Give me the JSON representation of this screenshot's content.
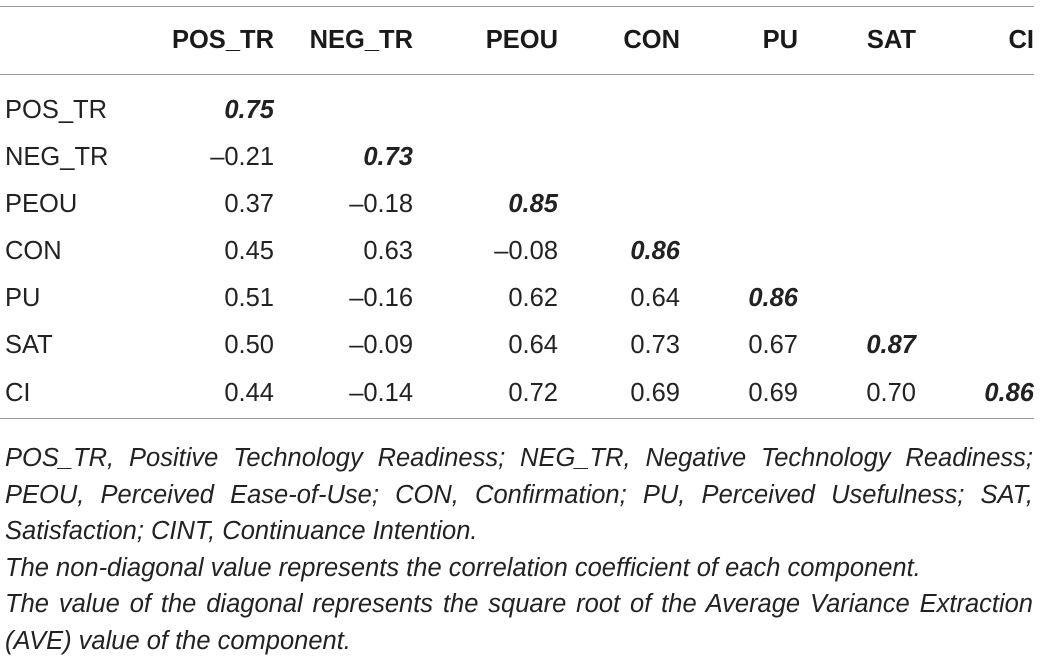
{
  "table": {
    "columns": [
      "POS_TR",
      "NEG_TR",
      "PEOU",
      "CON",
      "PU",
      "SAT",
      "CI"
    ],
    "rows": [
      {
        "label": "POS_TR",
        "cells": [
          "0.75",
          "",
          "",
          "",
          "",
          "",
          ""
        ]
      },
      {
        "label": "NEG_TR",
        "cells": [
          "–0.21",
          "0.73",
          "",
          "",
          "",
          "",
          ""
        ]
      },
      {
        "label": "PEOU",
        "cells": [
          "0.37",
          "–0.18",
          "0.85",
          "",
          "",
          "",
          ""
        ]
      },
      {
        "label": "CON",
        "cells": [
          "0.45",
          "0.63",
          "–0.08",
          "0.86",
          "",
          "",
          ""
        ]
      },
      {
        "label": "PU",
        "cells": [
          "0.51",
          "–0.16",
          "0.62",
          "0.64",
          "0.86",
          "",
          ""
        ]
      },
      {
        "label": "SAT",
        "cells": [
          "0.50",
          "–0.09",
          "0.64",
          "0.73",
          "0.67",
          "0.87",
          ""
        ]
      },
      {
        "label": "CI",
        "cells": [
          "0.44",
          "–0.14",
          "0.72",
          "0.69",
          "0.69",
          "0.70",
          "0.86"
        ]
      }
    ]
  },
  "notes": {
    "abbreviations": "POS_TR, Positive Technology Readiness; NEG_TR, Negative Technology Readiness; PEOU, Perceived Ease-of-Use; CON, Confirmation; PU, Perceived Usefulness; SAT, Satisfaction; CINT, Continuance Intention.",
    "line2": "The non-diagonal value represents the correlation coefficient of each component.",
    "line3": "The value of the diagonal represents the square root of the Average Variance Extraction (AVE) value of the component."
  }
}
